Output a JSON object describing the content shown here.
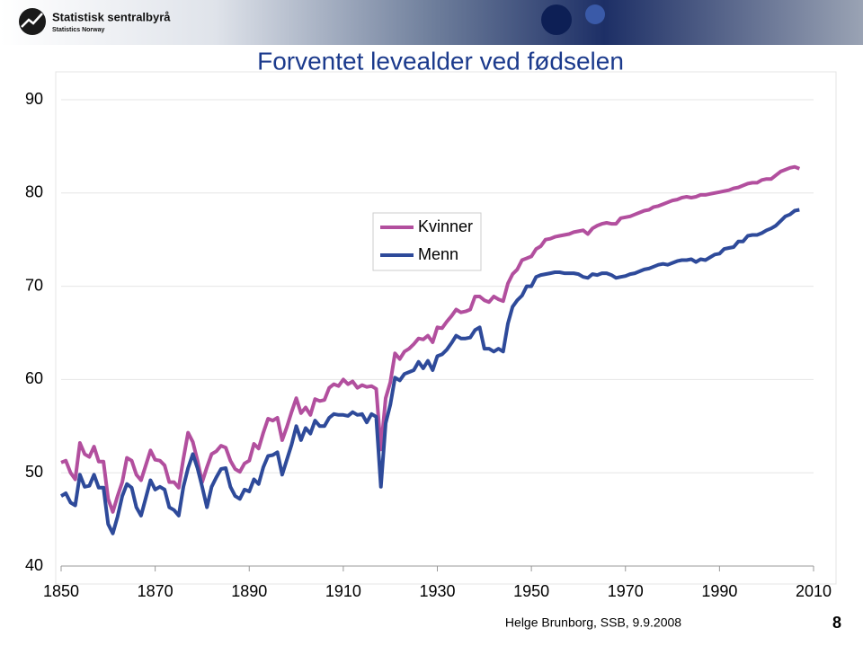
{
  "header": {
    "logo": "Statistisk sentralbyrå",
    "logo_sub": "Statistics Norway"
  },
  "chart_data": {
    "type": "line",
    "title": "Forventet levealder ved fødselen",
    "x": [
      1850,
      1851,
      1852,
      1853,
      1854,
      1855,
      1856,
      1857,
      1858,
      1859,
      1860,
      1861,
      1862,
      1863,
      1864,
      1865,
      1866,
      1867,
      1868,
      1869,
      1870,
      1871,
      1872,
      1873,
      1874,
      1875,
      1876,
      1877,
      1878,
      1879,
      1880,
      1881,
      1882,
      1883,
      1884,
      1885,
      1886,
      1887,
      1888,
      1889,
      1890,
      1891,
      1892,
      1893,
      1894,
      1895,
      1896,
      1897,
      1898,
      1899,
      1900,
      1901,
      1902,
      1903,
      1904,
      1905,
      1906,
      1907,
      1908,
      1909,
      1910,
      1911,
      1912,
      1913,
      1914,
      1915,
      1916,
      1917,
      1918,
      1919,
      1920,
      1921,
      1922,
      1923,
      1924,
      1925,
      1926,
      1927,
      1928,
      1929,
      1930,
      1931,
      1932,
      1933,
      1934,
      1935,
      1936,
      1937,
      1938,
      1939,
      1940,
      1941,
      1942,
      1943,
      1944,
      1945,
      1946,
      1947,
      1948,
      1949,
      1950,
      1951,
      1952,
      1953,
      1954,
      1955,
      1956,
      1957,
      1958,
      1959,
      1960,
      1961,
      1962,
      1963,
      1964,
      1965,
      1966,
      1967,
      1968,
      1969,
      1970,
      1971,
      1972,
      1973,
      1974,
      1975,
      1976,
      1977,
      1978,
      1979,
      1980,
      1981,
      1982,
      1983,
      1984,
      1985,
      1986,
      1987,
      1988,
      1989,
      1990,
      1991,
      1992,
      1993,
      1994,
      1995,
      1996,
      1997,
      1998,
      1999,
      2000,
      2001,
      2002,
      2003,
      2004,
      2005,
      2006,
      2007
    ],
    "series": [
      {
        "name": "Kvinner",
        "color": "#b24f9e",
        "values": [
          51.1,
          51.3,
          50.0,
          49.3,
          53.2,
          52.0,
          51.7,
          52.8,
          51.2,
          51.2,
          47.2,
          45.8,
          47.5,
          49.0,
          51.6,
          51.3,
          49.8,
          49.2,
          50.8,
          52.4,
          51.4,
          51.3,
          50.8,
          49.0,
          49.0,
          48.4,
          51.5,
          54.3,
          53.3,
          51.3,
          49.0,
          50.6,
          52.0,
          52.3,
          52.9,
          52.7,
          51.3,
          50.4,
          50.1,
          51.0,
          51.3,
          53.1,
          52.6,
          54.3,
          55.8,
          55.6,
          55.9,
          53.5,
          54.9,
          56.5,
          58.0,
          56.4,
          57.0,
          56.2,
          57.9,
          57.7,
          57.8,
          59.1,
          59.5,
          59.3,
          60.0,
          59.5,
          59.8,
          59.1,
          59.4,
          59.2,
          59.3,
          59.0,
          52.5,
          58.0,
          59.7,
          62.8,
          62.2,
          63.0,
          63.3,
          63.8,
          64.4,
          64.3,
          64.7,
          64.0,
          65.6,
          65.5,
          66.2,
          66.8,
          67.5,
          67.2,
          67.3,
          67.5,
          68.9,
          68.9,
          68.5,
          68.3,
          68.9,
          68.6,
          68.4,
          70.3,
          71.3,
          71.8,
          72.8,
          73.0,
          73.2,
          74.0,
          74.3,
          75.0,
          75.1,
          75.3,
          75.4,
          75.5,
          75.6,
          75.8,
          75.9,
          76.0,
          75.6,
          76.2,
          76.5,
          76.7,
          76.8,
          76.7,
          76.7,
          77.3,
          77.4,
          77.5,
          77.7,
          77.9,
          78.1,
          78.2,
          78.5,
          78.6,
          78.8,
          79.0,
          79.2,
          79.3,
          79.5,
          79.6,
          79.5,
          79.6,
          79.8,
          79.8,
          79.9,
          80.0,
          80.1,
          80.2,
          80.3,
          80.5,
          80.6,
          80.8,
          81.0,
          81.1,
          81.1,
          81.4,
          81.5,
          81.5,
          81.9,
          82.3,
          82.5,
          82.7,
          82.8,
          82.6
        ]
      },
      {
        "name": "Menn",
        "color": "#2e4a9a",
        "values": [
          47.5,
          47.8,
          46.8,
          46.5,
          49.8,
          48.5,
          48.6,
          49.8,
          48.4,
          48.4,
          44.5,
          43.5,
          45.3,
          47.5,
          48.8,
          48.4,
          46.3,
          45.4,
          47.3,
          49.2,
          48.2,
          48.5,
          48.2,
          46.3,
          46.0,
          45.4,
          48.5,
          50.5,
          52.0,
          50.5,
          48.5,
          46.3,
          48.5,
          49.5,
          50.4,
          50.5,
          48.5,
          47.5,
          47.2,
          48.2,
          48.0,
          49.3,
          48.8,
          50.6,
          51.8,
          51.9,
          52.2,
          49.8,
          51.4,
          53.0,
          55.0,
          53.5,
          54.8,
          54.2,
          55.6,
          55.0,
          55.0,
          55.9,
          56.3,
          56.2,
          56.2,
          56.1,
          56.5,
          56.2,
          56.3,
          55.4,
          56.3,
          56.0,
          48.5,
          55.3,
          57.3,
          60.2,
          59.9,
          60.6,
          60.8,
          61.0,
          61.9,
          61.2,
          62.0,
          61.0,
          62.5,
          62.7,
          63.2,
          63.9,
          64.7,
          64.4,
          64.4,
          64.5,
          65.3,
          65.6,
          63.3,
          63.3,
          63.0,
          63.3,
          63.0,
          66.0,
          67.8,
          68.5,
          69.0,
          70.0,
          70.0,
          71.0,
          71.2,
          71.3,
          71.4,
          71.5,
          71.5,
          71.4,
          71.4,
          71.4,
          71.3,
          71.0,
          70.9,
          71.3,
          71.2,
          71.4,
          71.4,
          71.2,
          70.9,
          71.0,
          71.1,
          71.3,
          71.4,
          71.6,
          71.8,
          71.9,
          72.1,
          72.3,
          72.4,
          72.3,
          72.5,
          72.7,
          72.8,
          72.8,
          72.9,
          72.6,
          72.9,
          72.8,
          73.1,
          73.4,
          73.5,
          74.0,
          74.1,
          74.2,
          74.8,
          74.8,
          75.4,
          75.5,
          75.5,
          75.7,
          76.0,
          76.2,
          76.5,
          77.0,
          77.5,
          77.7,
          78.1,
          78.2
        ]
      }
    ],
    "xlim": [
      1850,
      2010
    ],
    "xticks": [
      1850,
      1870,
      1890,
      1910,
      1930,
      1950,
      1970,
      1990,
      2010
    ],
    "ylim": [
      40,
      90
    ],
    "yticks": [
      40,
      50,
      60,
      70,
      80,
      90
    ],
    "grid": true,
    "legend": "center"
  },
  "footer": {
    "author": "Helge Brunborg, SSB, 9.9.2008",
    "page": "8"
  }
}
